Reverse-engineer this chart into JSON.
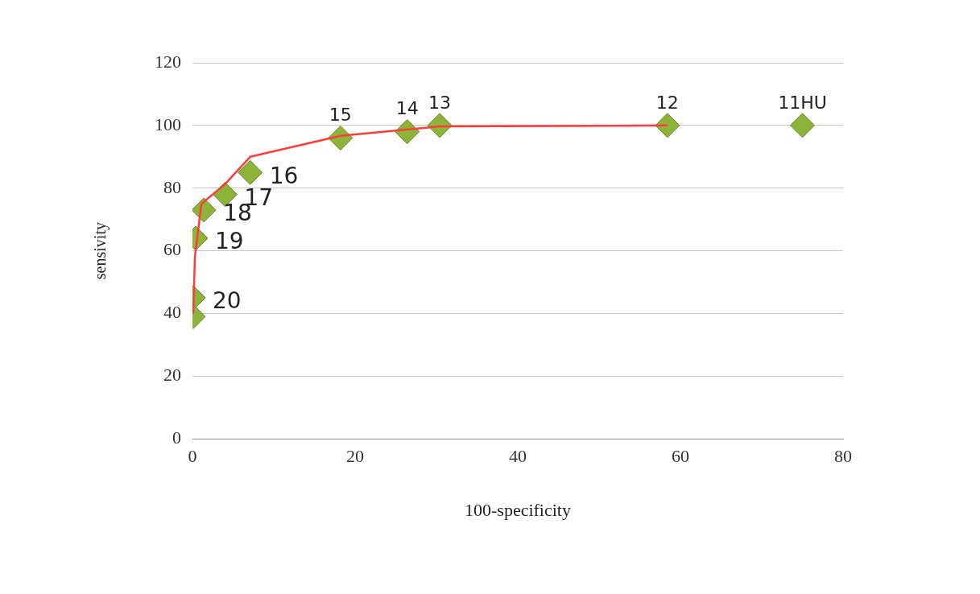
{
  "chart_data": {
    "type": "scatter",
    "xlabel": "100-specificity",
    "ylabel": "sensivity",
    "xlim": [
      0,
      80
    ],
    "xticks": [
      0,
      20,
      40,
      60,
      80
    ],
    "ylim": [
      0,
      120
    ],
    "yticks": [
      0,
      20,
      40,
      60,
      80,
      100,
      120
    ],
    "grid": "y",
    "legend": false,
    "series": [
      {
        "type": "scatter",
        "marker": "diamond",
        "color": "#8db33a",
        "x": [
          75,
          58.4,
          30.4,
          26.4,
          18.2,
          7.1,
          4.0,
          1.4,
          0.4,
          0.1,
          0.1
        ],
        "values": [
          100,
          100,
          100,
          98,
          96,
          85,
          78,
          73,
          64,
          45,
          39
        ]
      },
      {
        "type": "line",
        "color": "#ff3b3b",
        "x": [
          0.1,
          0.3,
          1.1,
          3.9,
          7.1,
          18.2,
          30.4,
          58.4
        ],
        "values": [
          40,
          58,
          75,
          81,
          90,
          96.7,
          99.7,
          100
        ]
      }
    ],
    "annotations": [
      {
        "text": "11HU",
        "x": 75,
        "y": 100
      },
      {
        "text": "12",
        "x": 58.4,
        "y": 100
      },
      {
        "text": "13",
        "x": 30.4,
        "y": 100
      },
      {
        "text": "14",
        "x": 26.4,
        "y": 98
      },
      {
        "text": "15",
        "x": 18.2,
        "y": 96
      },
      {
        "text": "16",
        "x": 7.1,
        "y": 85
      },
      {
        "text": "17",
        "x": 4.0,
        "y": 78
      },
      {
        "text": "18",
        "x": 1.4,
        "y": 73
      },
      {
        "text": "19",
        "x": 0.4,
        "y": 64
      },
      {
        "text": "20",
        "x": 0.1,
        "y": 45
      }
    ]
  }
}
